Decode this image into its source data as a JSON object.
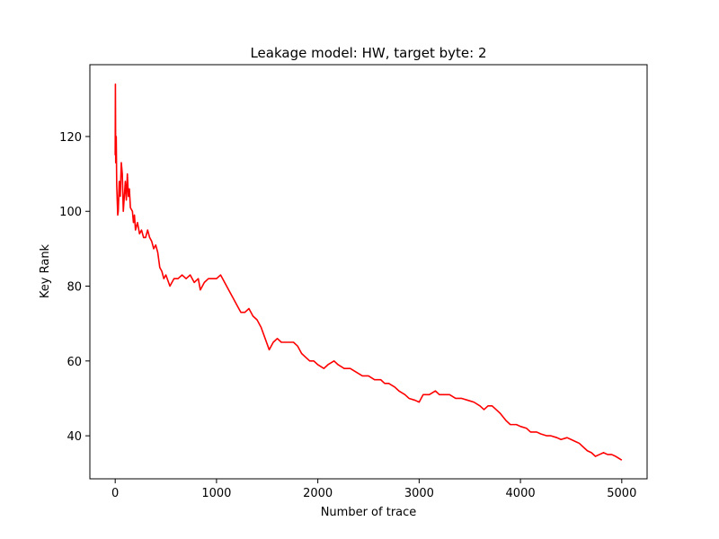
{
  "chart_data": {
    "type": "line",
    "title": "Leakage model: HW, target byte: 2",
    "x_label": "Number of trace",
    "y_label": "Key Rank",
    "x": [
      0,
      2,
      5,
      10,
      15,
      20,
      25,
      30,
      40,
      50,
      60,
      70,
      80,
      90,
      100,
      110,
      120,
      130,
      140,
      150,
      170,
      180,
      190,
      200,
      220,
      240,
      260,
      280,
      300,
      320,
      340,
      360,
      380,
      400,
      420,
      440,
      460,
      480,
      500,
      540,
      580,
      620,
      660,
      700,
      740,
      780,
      820,
      840,
      880,
      920,
      960,
      1000,
      1040,
      1080,
      1120,
      1160,
      1200,
      1240,
      1280,
      1320,
      1360,
      1400,
      1440,
      1480,
      1520,
      1560,
      1600,
      1640,
      1700,
      1760,
      1800,
      1840,
      1880,
      1920,
      1960,
      2000,
      2060,
      2100,
      2160,
      2200,
      2260,
      2320,
      2380,
      2440,
      2500,
      2560,
      2620,
      2660,
      2700,
      2760,
      2800,
      2860,
      2900,
      2960,
      3000,
      3040,
      3100,
      3160,
      3200,
      3260,
      3300,
      3360,
      3420,
      3480,
      3540,
      3600,
      3640,
      3680,
      3720,
      3760,
      3800,
      3860,
      3900,
      3960,
      4000,
      4060,
      4100,
      4160,
      4200,
      4260,
      4300,
      4360,
      4400,
      4460,
      4500,
      4540,
      4580,
      4620,
      4660,
      4700,
      4740,
      4780,
      4820,
      4860,
      4900,
      4940,
      5000
    ],
    "series": [
      {
        "name": "Key Rank",
        "color": "#ff0000",
        "values": [
          115,
          134,
          113,
          120,
          107,
          103,
          99,
          100,
          108,
          104,
          113,
          110,
          100,
          104,
          108,
          103,
          110,
          104,
          106,
          101,
          100,
          97,
          99,
          95,
          97,
          94,
          95,
          93,
          93,
          95,
          93,
          92,
          90,
          91,
          89,
          85,
          84,
          82,
          83,
          80,
          82,
          82,
          83,
          82,
          83,
          81,
          82,
          79,
          81,
          82,
          82,
          82,
          83,
          81,
          79,
          77,
          75,
          73,
          73,
          74,
          72,
          71,
          69,
          66,
          63,
          65,
          66,
          65,
          65,
          65,
          64,
          62,
          61,
          60,
          60,
          59,
          58,
          59,
          60,
          59,
          58,
          58,
          57,
          56,
          56,
          55,
          55,
          54,
          54,
          53,
          52,
          51,
          50,
          49.5,
          49,
          51,
          51,
          52,
          51,
          51,
          51,
          50,
          50,
          49.5,
          49,
          48,
          47,
          48,
          48,
          47,
          46,
          44,
          43,
          43,
          42.5,
          42,
          41,
          41,
          40.5,
          40,
          40,
          39.5,
          39,
          39.5,
          39,
          38.5,
          38,
          37,
          36,
          35.5,
          34.5,
          35,
          35.5,
          35,
          35,
          34.5,
          33.5
        ]
      }
    ],
    "xlim": [
      -250,
      5250
    ],
    "ylim": [
      28.5,
      139.2
    ],
    "xticks": [
      0,
      1000,
      2000,
      3000,
      4000,
      5000
    ],
    "yticks": [
      40,
      60,
      80,
      100,
      120
    ]
  }
}
